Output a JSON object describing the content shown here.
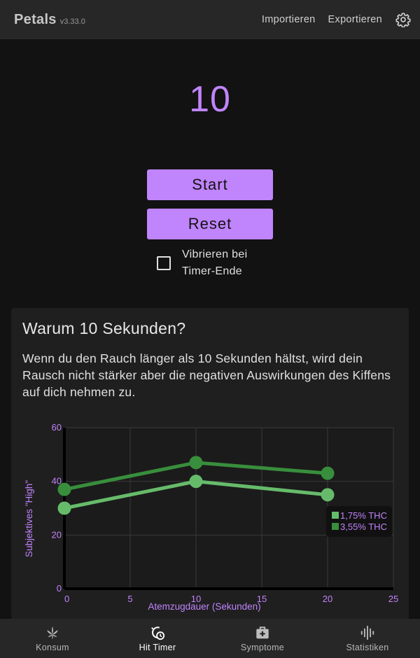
{
  "header": {
    "app_title": "Petals",
    "version": "v3.33.0",
    "import_label": "Importieren",
    "export_label": "Exportieren"
  },
  "timer": {
    "value": "10",
    "start_label": "Start",
    "reset_label": "Reset",
    "vibrate_label": "Vibrieren bei Timer-Ende",
    "vibrate_checked": false
  },
  "info": {
    "title": "Warum 10 Sekunden?",
    "body": "Wenn du den Rauch länger als 10 Sekunden hältst, wird dein Rausch nicht stärker aber die negativen Auswirkungen des Kiffens auf dich nehmen zu."
  },
  "chart_data": {
    "type": "line",
    "xlabel": "Atemzugdauer (Sekunden)",
    "ylabel": "Subjektives \"High\"",
    "xlim": [
      0,
      25
    ],
    "ylim": [
      0,
      60
    ],
    "xticks": [
      "0",
      "5",
      "10",
      "15",
      "20",
      "25"
    ],
    "yticks": [
      "0",
      "20",
      "40",
      "60"
    ],
    "grid": true,
    "legend_position": "right",
    "series": [
      {
        "name": "1,75% THC",
        "color": "#66bb6a",
        "x": [
          0,
          10,
          20
        ],
        "y": [
          30,
          40,
          35
        ]
      },
      {
        "name": "3,55% THC",
        "color": "#388e3c",
        "x": [
          0,
          10,
          20
        ],
        "y": [
          37,
          47,
          43
        ]
      }
    ]
  },
  "colors": {
    "accent": "#c084fc",
    "background": "#121212",
    "bar": "#272727"
  },
  "bottom_nav": {
    "items": [
      {
        "label": "Konsum",
        "icon": "cannabis-leaf-icon"
      },
      {
        "label": "Hit Timer",
        "icon": "timer-icon",
        "active": true
      },
      {
        "label": "Symptome",
        "icon": "medical-kit-icon"
      },
      {
        "label": "Statistiken",
        "icon": "statistics-icon"
      }
    ]
  }
}
